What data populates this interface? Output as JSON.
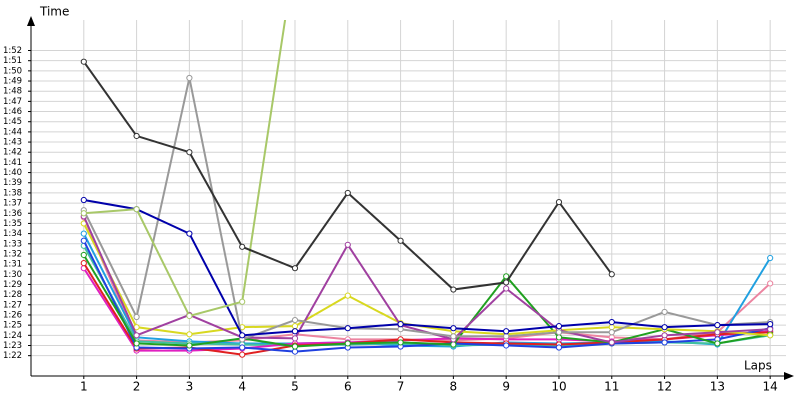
{
  "chart_data": {
    "type": "line",
    "y_label": "Time",
    "x_label": "Laps",
    "x": [
      1,
      2,
      3,
      4,
      5,
      6,
      7,
      8,
      9,
      10,
      11,
      12,
      13,
      14
    ],
    "xlim": [
      0,
      14.3
    ],
    "xticks": [
      1,
      2,
      3,
      4,
      5,
      6,
      7,
      8,
      9,
      10,
      11,
      12,
      13,
      14
    ],
    "ylim": [
      80,
      115
    ],
    "yticks": [
      {
        "value": 82,
        "label": "1:22"
      },
      {
        "value": 83,
        "label": "1:23"
      },
      {
        "value": 84,
        "label": "1:24"
      },
      {
        "value": 85,
        "label": "1:25"
      },
      {
        "value": 86,
        "label": "1:26"
      },
      {
        "value": 87,
        "label": "1:27"
      },
      {
        "value": 88,
        "label": "1:28"
      },
      {
        "value": 89,
        "label": "1:29"
      },
      {
        "value": 90,
        "label": "1:30"
      },
      {
        "value": 91,
        "label": "1:31"
      },
      {
        "value": 92,
        "label": "1:32"
      },
      {
        "value": 93,
        "label": "1:33"
      },
      {
        "value": 94,
        "label": "1:34"
      },
      {
        "value": 95,
        "label": "1:35"
      },
      {
        "value": 96,
        "label": "1:36"
      },
      {
        "value": 97,
        "label": "1:37"
      },
      {
        "value": 98,
        "label": "1:38"
      },
      {
        "value": 99,
        "label": "1:39"
      },
      {
        "value": 100,
        "label": "1:40"
      },
      {
        "value": 101,
        "label": "1:41"
      },
      {
        "value": 102,
        "label": "1:42"
      },
      {
        "value": 103,
        "label": "1:43"
      },
      {
        "value": 104,
        "label": "1:44"
      },
      {
        "value": 105,
        "label": "1:45"
      },
      {
        "value": 106,
        "label": "1:46"
      },
      {
        "value": 107,
        "label": "1:47"
      },
      {
        "value": 108,
        "label": "1:48"
      },
      {
        "value": 109,
        "label": "1:49"
      },
      {
        "value": 110,
        "label": "1:50"
      },
      {
        "value": 111,
        "label": "1:51"
      },
      {
        "value": 112,
        "label": "1:52"
      }
    ],
    "grid": true,
    "series": [
      {
        "color": "#ec84a0",
        "values": [
          95.6,
          83.5,
          83.3,
          83.5,
          84.1,
          83.6,
          83.6,
          83.5,
          83.7,
          84.3,
          83.8,
          83.6,
          84.3,
          89.1
        ]
      },
      {
        "color": "#20a0e0",
        "values": [
          94.0,
          83.8,
          83.4,
          83.2,
          83.2,
          83.3,
          83.0,
          82.9,
          83.3,
          83.2,
          83.3,
          83.4,
          83.1,
          91.6
        ]
      },
      {
        "color": "#40c0a0",
        "values": [
          92.8,
          83.4,
          83.2,
          83.1,
          83.0,
          83.1,
          83.2,
          83.0,
          83.1,
          83.0,
          83.2,
          83.3,
          83.2,
          84.0
        ]
      },
      {
        "color": "#e020c0",
        "values": [
          90.6,
          82.5,
          82.5,
          82.7,
          83.2,
          83.3,
          83.5,
          83.7,
          83.6,
          83.6,
          83.4,
          83.6,
          84.0,
          84.4
        ]
      },
      {
        "color": "#e02020",
        "values": [
          91.1,
          82.7,
          82.8,
          82.1,
          83.0,
          83.2,
          83.6,
          83.3,
          83.2,
          83.1,
          83.3,
          83.6,
          84.1,
          84.3
        ]
      },
      {
        "color": "#2040e0",
        "values": [
          93.3,
          82.8,
          82.7,
          82.8,
          82.4,
          82.8,
          82.9,
          83.2,
          83.0,
          82.8,
          83.2,
          83.3,
          83.6,
          84.7
        ]
      },
      {
        "color": "#20a020",
        "values": [
          91.9,
          83.2,
          83.0,
          83.7,
          82.9,
          83.2,
          83.3,
          83.1,
          89.8,
          83.8,
          83.3,
          84.6,
          83.2,
          84.1
        ]
      },
      {
        "color": "#d8d820",
        "values": [
          95.0,
          84.8,
          84.1,
          84.8,
          84.9,
          87.9,
          85.2,
          84.4,
          84.1,
          84.5,
          84.8,
          84.6,
          84.4,
          84.0
        ]
      },
      {
        "color": "#a040a0",
        "values": [
          95.7,
          84.0,
          86.0,
          83.8,
          83.7,
          92.9,
          85.0,
          83.6,
          88.6,
          84.5,
          83.3,
          84.0,
          84.3,
          84.6
        ]
      },
      {
        "color": "#999999",
        "values": [
          96.3,
          85.8,
          109.3,
          83.6,
          85.5,
          84.7,
          84.6,
          83.9,
          83.9,
          84.3,
          84.3,
          86.3,
          85.0,
          85.3
        ]
      },
      {
        "color": "#0000aa",
        "values": [
          97.3,
          96.4,
          94.0,
          84.0,
          84.4,
          84.7,
          85.1,
          84.7,
          84.4,
          84.9,
          85.3,
          84.8,
          85.0,
          85.1
        ]
      },
      {
        "color": "#a8c868",
        "values": [
          96.0,
          96.4,
          85.9,
          87.3,
          121.4,
          null,
          null,
          null,
          null,
          null,
          null,
          null,
          null,
          null
        ]
      },
      {
        "color": "#333333",
        "values": [
          110.9,
          103.6,
          102.0,
          92.7,
          90.6,
          98.0,
          93.3,
          88.5,
          89.2,
          97.1,
          90.0,
          null,
          null,
          null
        ]
      }
    ]
  }
}
